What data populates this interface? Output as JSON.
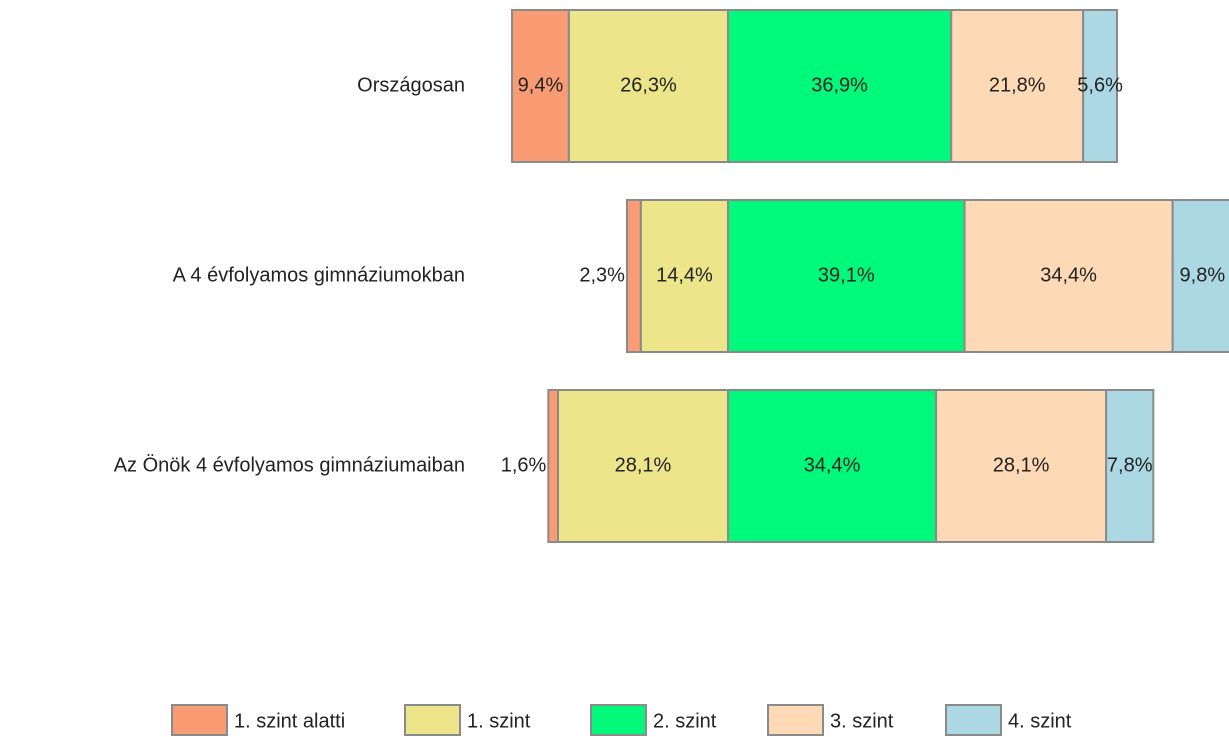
{
  "chart_data": {
    "type": "bar",
    "categories": [
      "Országosan",
      "A 4 évfolyamos gimnáziumokban",
      "Az Önök 4 évfolyamos gimnáziumaiban"
    ],
    "series": [
      {
        "name": "1. szint alatti",
        "color": "#f99c74",
        "values": [
          9.4,
          2.3,
          1.6
        ],
        "value_labels": [
          "9,4%",
          "2,3%",
          "1,6%"
        ]
      },
      {
        "name": "1. szint",
        "color": "#ede58a",
        "values": [
          26.3,
          14.4,
          28.1
        ],
        "value_labels": [
          "26,3%",
          "14,4%",
          "28,1%"
        ]
      },
      {
        "name": "2. szint",
        "color": "#00f97a",
        "values": [
          36.9,
          39.1,
          34.4
        ],
        "value_labels": [
          "36,9%",
          "39,1%",
          "34,4%"
        ]
      },
      {
        "name": "3. szint",
        "color": "#fdd9b5",
        "values": [
          21.8,
          34.4,
          28.1
        ],
        "value_labels": [
          "21,8%",
          "34,4%",
          "28,1%"
        ]
      },
      {
        "name": "4. szint",
        "color": "#acd8e4",
        "values": [
          5.6,
          9.8,
          7.8
        ],
        "value_labels": [
          "5,6%",
          "9,8%",
          "7,8%"
        ]
      }
    ],
    "legend": "bottom"
  }
}
